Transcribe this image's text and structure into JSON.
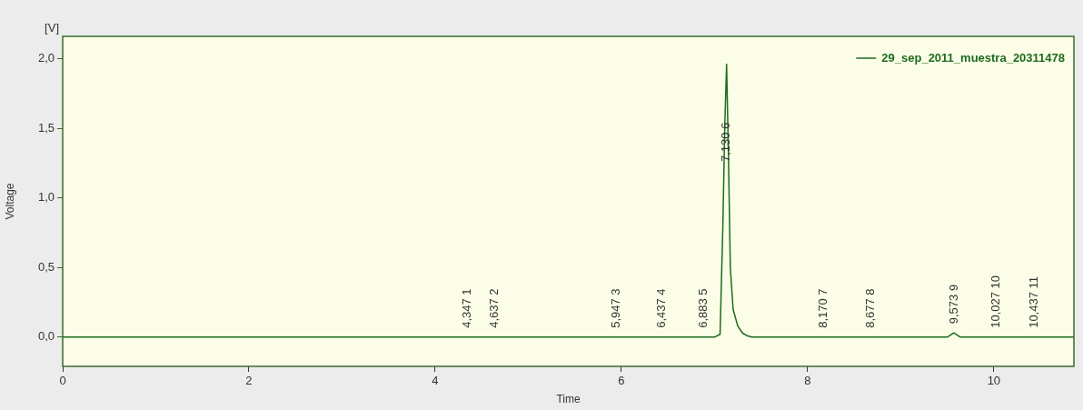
{
  "chart_data": {
    "type": "line",
    "xlabel": "Time",
    "ylabel": "Voltage",
    "xlim": [
      0,
      10.86
    ],
    "ylim": [
      -0.21,
      2.16
    ],
    "xticks": [
      0,
      2,
      4,
      6,
      8,
      10
    ],
    "yticks": [
      {
        "value": 0,
        "label": "0,0"
      },
      {
        "value": 0.5,
        "label": "0,5"
      },
      {
        "value": 1,
        "label": "1,0"
      },
      {
        "value": 1.5,
        "label": "1,5"
      },
      {
        "value": 2,
        "label": "2,0"
      }
    ],
    "grid": false,
    "legend": "top right",
    "marker": "none",
    "line_style": "solid",
    "series": [
      {
        "name": "29_sep_2011_muestra_20311478",
        "color": "#1e6b1e",
        "x": [
          0,
          4,
          7.0,
          7.06,
          7.09,
          7.11,
          7.13,
          7.15,
          7.17,
          7.2,
          7.25,
          7.3,
          7.35,
          7.4,
          9.5,
          9.57,
          9.64,
          10.86
        ],
        "values": [
          0,
          0,
          0,
          0.02,
          0.8,
          1.5,
          1.96,
          1.3,
          0.5,
          0.2,
          0.08,
          0.03,
          0.01,
          0,
          0,
          0.03,
          0,
          0
        ]
      }
    ],
    "annotations": [
      "[V]",
      {
        "text": "4,347 1",
        "x": 4.347,
        "y": 0
      },
      {
        "text": "4,637 2",
        "x": 4.637,
        "y": 0
      },
      {
        "text": "5,947 3",
        "x": 5.947,
        "y": 0
      },
      {
        "text": "6,437 4",
        "x": 6.437,
        "y": 0
      },
      {
        "text": "6,883 5",
        "x": 6.883,
        "y": 0
      },
      {
        "text": "7,130 6",
        "x": 7.13,
        "y": 1.4
      },
      {
        "text": "8,170 7",
        "x": 8.17,
        "y": 0
      },
      {
        "text": "8,677 8",
        "x": 8.677,
        "y": 0
      },
      {
        "text": "9,573 9",
        "x": 9.573,
        "y": 0.03
      },
      {
        "text": "10,027 10",
        "x": 10.027,
        "y": 0
      },
      {
        "text": "10,437 11",
        "x": 10.437,
        "y": 0
      }
    ]
  }
}
